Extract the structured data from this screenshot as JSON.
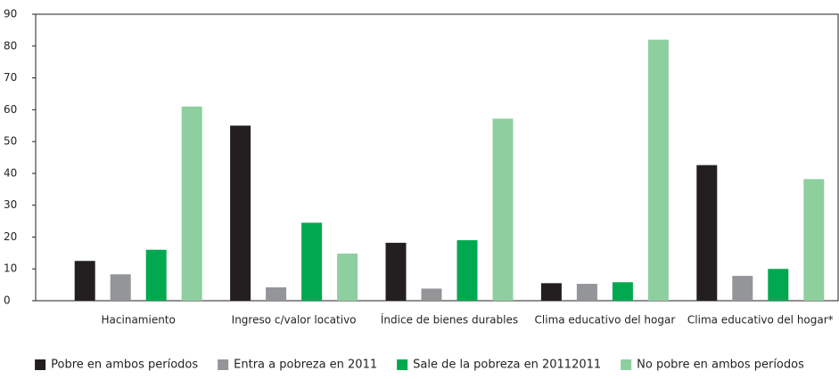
{
  "chart_data": {
    "type": "bar",
    "categories": [
      "Hacinamiento",
      "Ingreso c/valor locativo",
      "Índice de bienes durables",
      "Clima educativo del hogar",
      "Clima educativo del hogar*"
    ],
    "series": [
      {
        "name": "Pobre en ambos períodos",
        "color": "#231f20",
        "values": [
          12.5,
          55,
          18.2,
          5.5,
          42.6
        ]
      },
      {
        "name": "Entra a pobreza en 2011",
        "color": "#939598",
        "values": [
          8.3,
          4.2,
          3.8,
          5.3,
          7.8
        ]
      },
      {
        "name": "Sale de la pobreza en 20112011",
        "color": "#00a94f",
        "values": [
          16,
          24.5,
          19,
          5.8,
          10
        ]
      },
      {
        "name": "No pobre en ambos períodos",
        "color": "#8dcf9f",
        "values": [
          61,
          14.8,
          57.2,
          82,
          38.2
        ]
      }
    ],
    "ylim": [
      0,
      90
    ],
    "yticks": [
      0,
      10,
      20,
      30,
      40,
      50,
      60,
      70,
      80,
      90
    ],
    "grid": false,
    "legend": "bottom"
  }
}
